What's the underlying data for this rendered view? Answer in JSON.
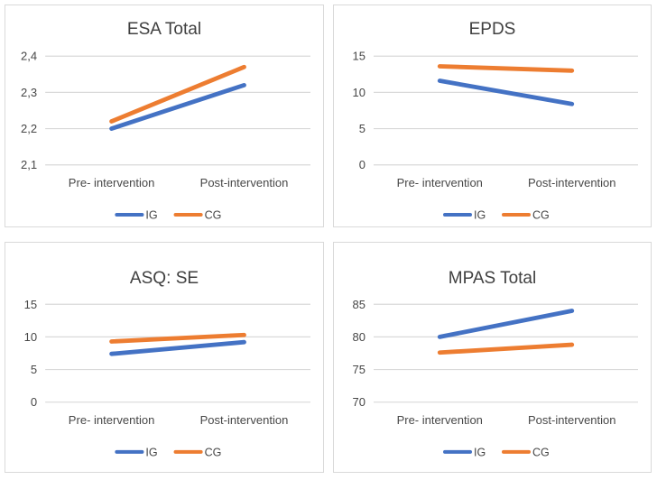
{
  "figure": {
    "description_colors": {
      "ig_line": "#4472C4",
      "cg_line": "#ED7D31",
      "gridline": "#D9D9D9",
      "panel_border": "#D9D9D9",
      "text": "#404040"
    }
  },
  "chart_data": [
    {
      "type": "line",
      "title": "ESA Total",
      "categories": [
        "Pre- intervention",
        "Post-intervention"
      ],
      "yticks": [
        {
          "label": "2,4",
          "value": 2.4
        },
        {
          "label": "2,3",
          "value": 2.3
        },
        {
          "label": "2,2",
          "value": 2.2
        },
        {
          "label": "2,1",
          "value": 2.1
        }
      ],
      "ylim": [
        2.1,
        2.4
      ],
      "grid": true,
      "legend_position": "bottom",
      "series": [
        {
          "name": "IG",
          "color": "#4472C4",
          "values": [
            2.2,
            2.32
          ]
        },
        {
          "name": "CG",
          "color": "#ED7D31",
          "values": [
            2.22,
            2.37
          ]
        }
      ]
    },
    {
      "type": "line",
      "title": "EPDS",
      "categories": [
        "Pre- intervention",
        "Post-intervention"
      ],
      "yticks": [
        {
          "label": "15",
          "value": 15
        },
        {
          "label": "10",
          "value": 10
        },
        {
          "label": "5",
          "value": 5
        },
        {
          "label": "0",
          "value": 0
        }
      ],
      "ylim": [
        0,
        15
      ],
      "grid": true,
      "legend_position": "bottom",
      "series": [
        {
          "name": "IG",
          "color": "#4472C4",
          "values": [
            11.6,
            8.4
          ]
        },
        {
          "name": "CG",
          "color": "#ED7D31",
          "values": [
            13.6,
            13.0
          ]
        }
      ]
    },
    {
      "type": "line",
      "title": "ASQ: SE",
      "categories": [
        "Pre- intervention",
        "Post-intervention"
      ],
      "yticks": [
        {
          "label": "15",
          "value": 15
        },
        {
          "label": "10",
          "value": 10
        },
        {
          "label": "5",
          "value": 5
        },
        {
          "label": "0",
          "value": 0
        }
      ],
      "ylim": [
        0,
        15
      ],
      "grid": true,
      "legend_position": "bottom",
      "series": [
        {
          "name": "IG",
          "color": "#4472C4",
          "values": [
            7.4,
            9.2
          ]
        },
        {
          "name": "CG",
          "color": "#ED7D31",
          "values": [
            9.3,
            10.3
          ]
        }
      ]
    },
    {
      "type": "line",
      "title": "MPAS Total",
      "categories": [
        "Pre- intervention",
        "Post-intervention"
      ],
      "yticks": [
        {
          "label": "85",
          "value": 85
        },
        {
          "label": "80",
          "value": 80
        },
        {
          "label": "75",
          "value": 75
        },
        {
          "label": "70",
          "value": 70
        }
      ],
      "ylim": [
        70,
        85
      ],
      "grid": true,
      "legend_position": "bottom",
      "series": [
        {
          "name": "IG",
          "color": "#4472C4",
          "values": [
            80.0,
            84.0
          ]
        },
        {
          "name": "CG",
          "color": "#ED7D31",
          "values": [
            77.6,
            78.8
          ]
        }
      ]
    }
  ]
}
